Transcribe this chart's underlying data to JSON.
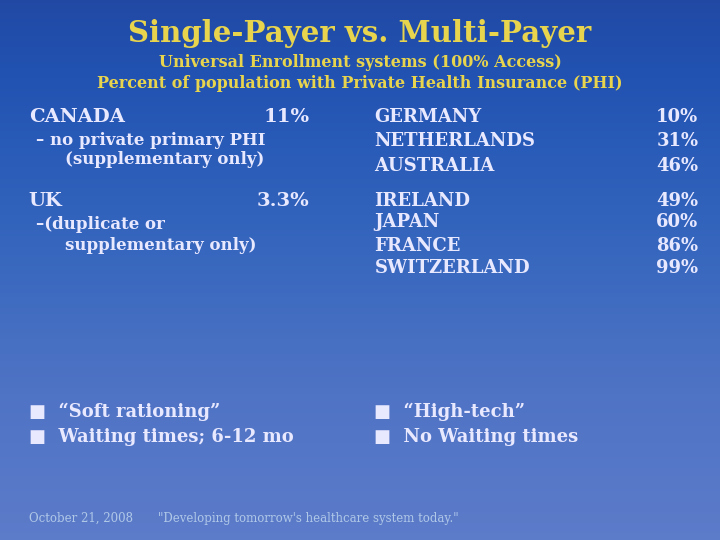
{
  "title": "Single-Payer vs. Multi-Payer",
  "subtitle1": "Universal Enrollment systems (100% Access)",
  "subtitle2": "Percent of population with Private Health Insurance (PHI)",
  "bg_color": "#2a52b8",
  "title_color": "#e8d44d",
  "subtitle_color": "#e8d44d",
  "body_color": "#e8e8ff",
  "bullet_color": "#e8e8ff",
  "footer_color": "#b0c8e8",
  "right_col": [
    {
      "country": "GERMANY",
      "pct": "10%"
    },
    {
      "country": "NETHERLANDS",
      "pct": "31%"
    },
    {
      "country": "AUSTRALIA",
      "pct": "46%"
    },
    {
      "country": "IRELAND",
      "pct": "49%"
    },
    {
      "country": "JAPAN",
      "pct": "60%"
    },
    {
      "country": "FRANCE",
      "pct": "86%"
    },
    {
      "country": "SWITZERLAND",
      "pct": "99%"
    }
  ],
  "footer_left": "October 21, 2008",
  "footer_right": "\"Developing tomorrow's healthcare system today.\""
}
